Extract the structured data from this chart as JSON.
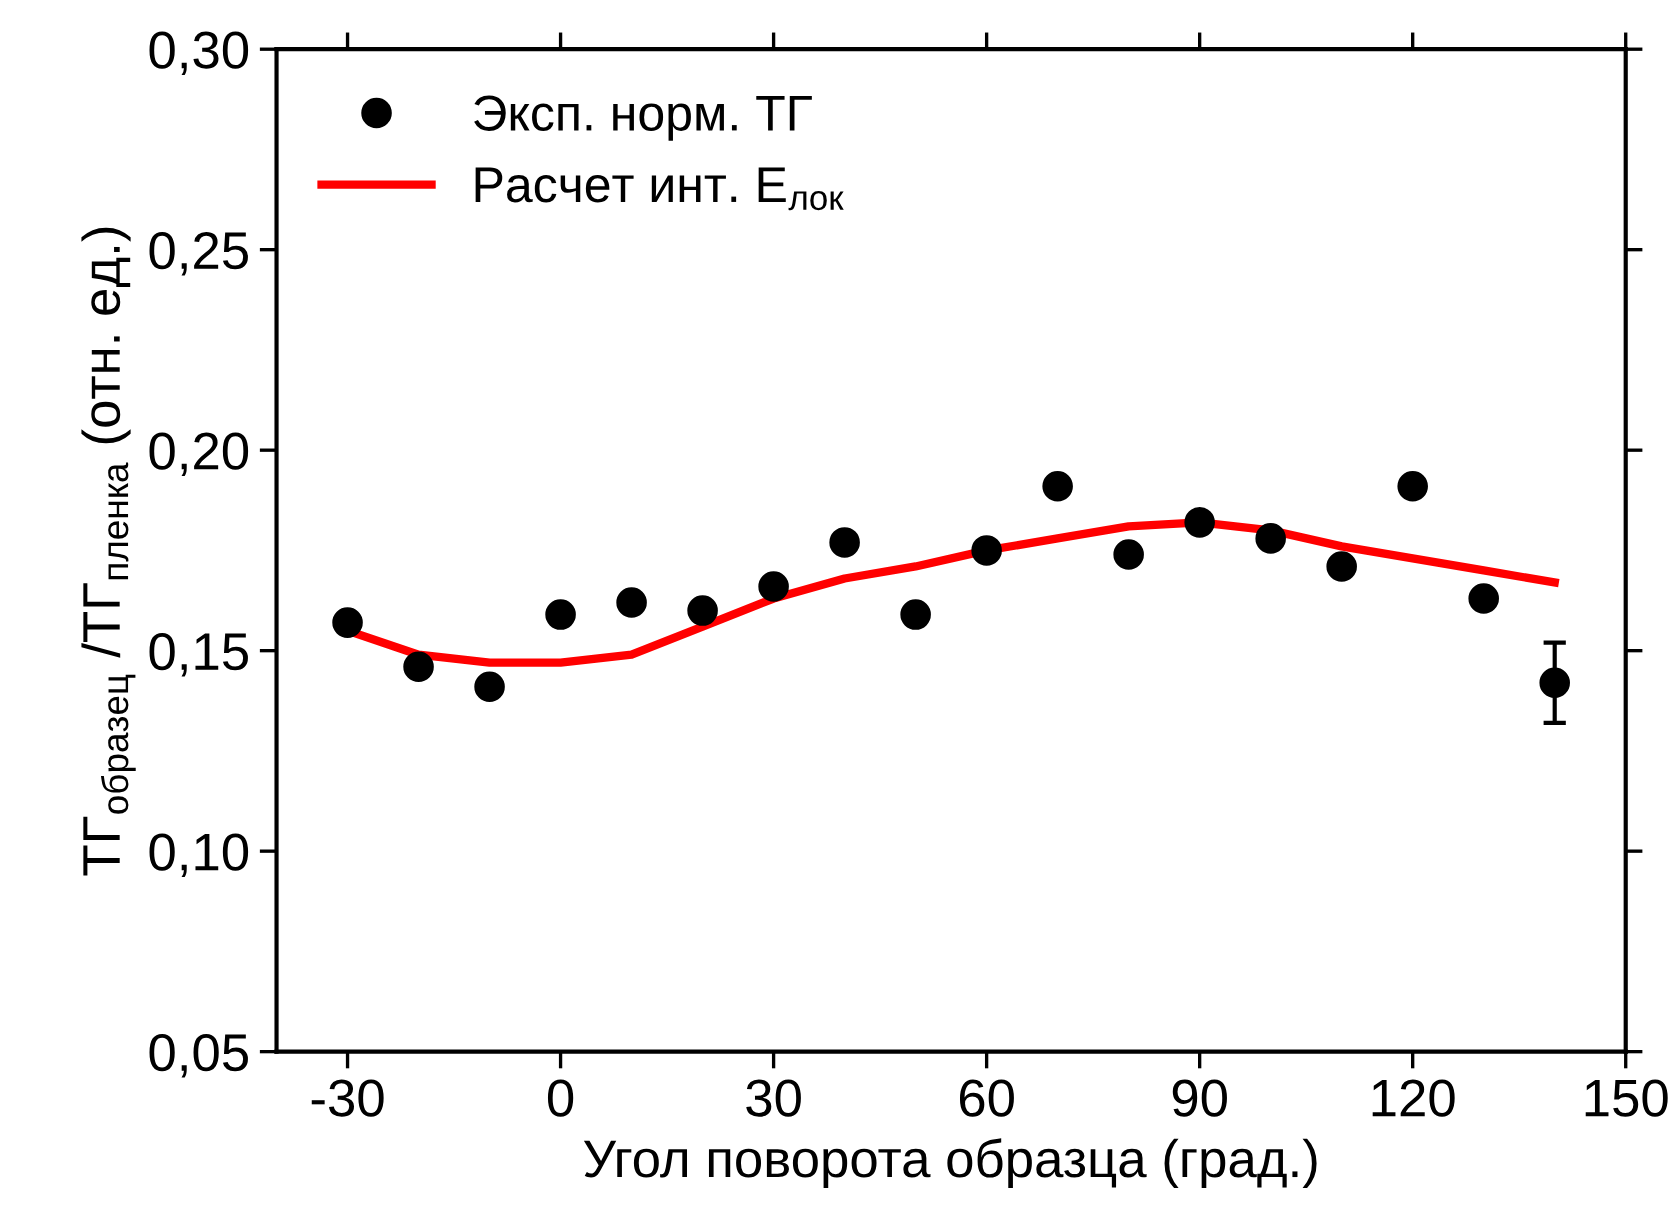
{
  "chart_data": {
    "type": "scatter",
    "xlabel": "Угол поворота образца (град.)",
    "ylabel": "ТГ$_{образец}$ /ТГ$_{пленка}$ (отн. ед.)",
    "xlim": [
      -40,
      150
    ],
    "xticks": [
      {
        "value": -30,
        "label": "-30"
      },
      0,
      30,
      60,
      90,
      120,
      150
    ],
    "ylim": [
      0.05,
      0.3
    ],
    "yticks": [
      {
        "value": 0.05,
        "label": "0,05"
      },
      {
        "value": 0.1,
        "label": "0,10"
      },
      {
        "value": 0.15,
        "label": "0,15"
      },
      {
        "value": 0.2,
        "label": "0,20"
      },
      {
        "value": 0.25,
        "label": "0,25"
      },
      {
        "value": 0.3,
        "label": "0,30"
      }
    ],
    "legend": "top left",
    "grid": false,
    "series": [
      {
        "name": "Эксп. норм. ТГ",
        "color": "#000000",
        "marker": "circle",
        "x": [
          -30,
          -20,
          -10,
          0,
          10,
          20,
          30,
          40,
          50,
          60,
          70,
          80,
          90,
          100,
          110,
          120,
          130,
          140
        ],
        "values": [
          0.157,
          0.146,
          0.141,
          0.159,
          0.162,
          0.16,
          0.166,
          0.177,
          0.159,
          0.175,
          0.191,
          0.174,
          0.182,
          0.178,
          0.171,
          0.191,
          0.163,
          0.142
        ],
        "errors": [
          null,
          null,
          null,
          null,
          null,
          null,
          null,
          null,
          null,
          null,
          null,
          null,
          null,
          null,
          null,
          null,
          null,
          0.01
        ]
      },
      {
        "name": "Расчет инт. E$_{лок}$",
        "type": "line",
        "color": "#ff0000",
        "line_style": "solid",
        "x": [
          -30,
          -20,
          -10,
          0,
          10,
          20,
          30,
          40,
          50,
          60,
          70,
          80,
          90,
          100,
          110,
          120,
          130,
          140
        ],
        "values": [
          0.155,
          0.149,
          0.147,
          0.147,
          0.149,
          0.156,
          0.163,
          0.168,
          0.171,
          0.175,
          0.178,
          0.181,
          0.182,
          0.18,
          0.176,
          0.173,
          0.17,
          0.167
        ]
      }
    ]
  }
}
